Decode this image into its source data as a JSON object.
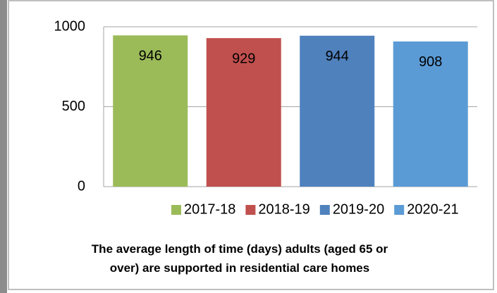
{
  "chart_data": {
    "type": "bar",
    "title": "The average length of time (days) adults (aged 65 or over) are supported in residential care homes",
    "categories": [
      "2017-18",
      "2018-19",
      "2019-20",
      "2020-21"
    ],
    "values": [
      946,
      929,
      944,
      908
    ],
    "colors": [
      "#9bbb59",
      "#c0504d",
      "#4f81bd",
      "#5b9bd5"
    ],
    "ylim": [
      0,
      1000
    ],
    "yticks": [
      0,
      500,
      1000
    ],
    "grid": true,
    "legend": "bottom"
  }
}
